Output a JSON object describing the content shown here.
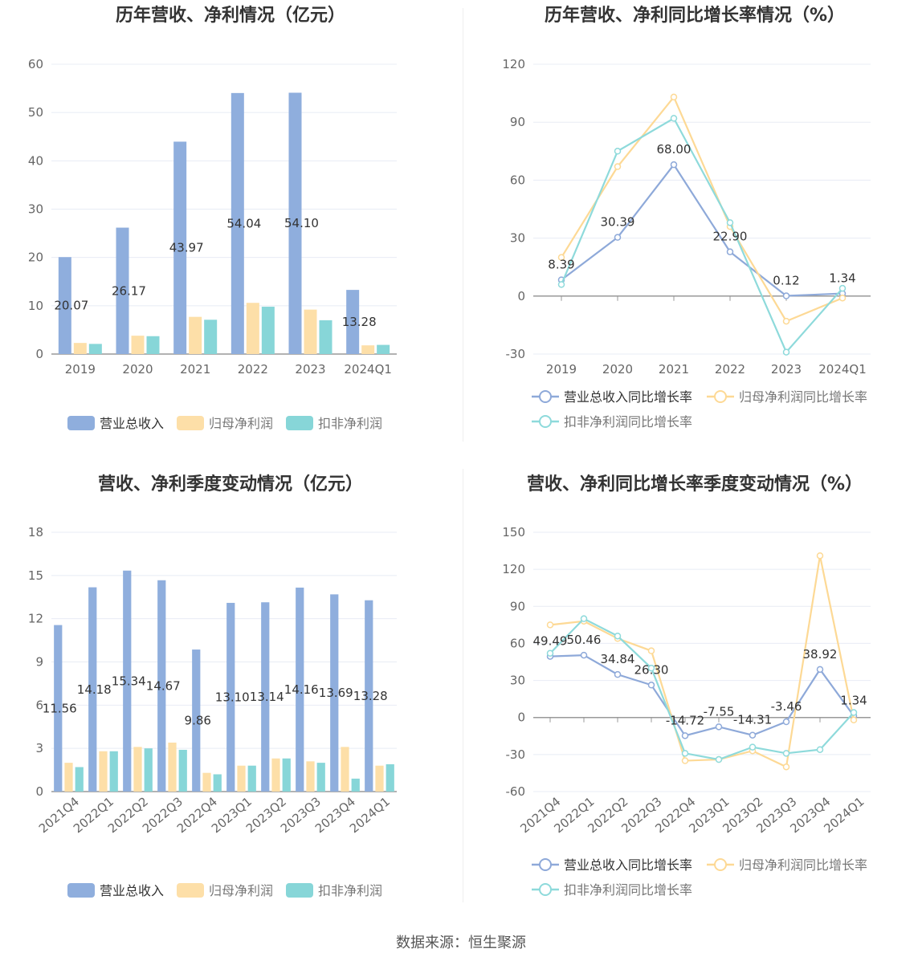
{
  "source": "数据来源：恒生聚源",
  "colors": {
    "revenue": "#8faedd",
    "net_profit": "#fddfa8",
    "deducted_profit": "#87d6d8",
    "revenue_line": "#8ea9d9",
    "net_profit_line": "#fdd995",
    "deducted_line": "#8edadb",
    "grid": "#e8ecf4",
    "axis": "#999999",
    "text": "#444444"
  },
  "chart_data": [
    {
      "type": "bar",
      "title": "历年营收、净利情况（亿元）",
      "categories": [
        "2019",
        "2020",
        "2021",
        "2022",
        "2023",
        "2024Q1"
      ],
      "ylim": [
        0,
        60
      ],
      "yticks": [
        0,
        10,
        20,
        30,
        40,
        50,
        60
      ],
      "series": [
        {
          "name": "营业总收入",
          "values": [
            20.07,
            26.17,
            43.97,
            54.04,
            54.1,
            13.28
          ],
          "labels": [
            "20.07",
            "26.17",
            "43.97",
            "54.04",
            "54.10",
            "13.28"
          ]
        },
        {
          "name": "归母净利润",
          "values": [
            2.3,
            3.8,
            7.7,
            10.6,
            9.2,
            1.8
          ]
        },
        {
          "name": "扣非净利润",
          "values": [
            2.1,
            3.7,
            7.1,
            9.8,
            7.0,
            1.9
          ]
        }
      ],
      "grid": true,
      "legend": "bottom"
    },
    {
      "type": "line",
      "title": "历年营收、净利同比增长率情况（%）",
      "categories": [
        "2019",
        "2020",
        "2021",
        "2022",
        "2023",
        "2024Q1"
      ],
      "ylim": [
        -30,
        120
      ],
      "yticks": [
        -30,
        0,
        30,
        60,
        90,
        120
      ],
      "series": [
        {
          "name": "营业总收入同比增长率",
          "values": [
            8.39,
            30.39,
            68.0,
            22.9,
            0.12,
            1.34
          ],
          "labels": [
            "8.39",
            "30.39",
            "68.00",
            "22.90",
            "0.12",
            "1.34"
          ]
        },
        {
          "name": "归母净利润同比增长率",
          "values": [
            20,
            67,
            103,
            36,
            -13,
            -1
          ]
        },
        {
          "name": "扣非净利润同比增长率",
          "values": [
            6,
            75,
            92,
            38,
            -29,
            4
          ]
        }
      ],
      "grid": true,
      "legend": "bottom"
    },
    {
      "type": "bar",
      "title": "营收、净利季度变动情况（亿元）",
      "categories": [
        "2021Q4",
        "2022Q1",
        "2022Q2",
        "2022Q3",
        "2022Q4",
        "2023Q1",
        "2023Q2",
        "2023Q3",
        "2023Q4",
        "2024Q1"
      ],
      "ylim": [
        0,
        18
      ],
      "yticks": [
        0,
        3,
        6,
        9,
        12,
        15,
        18
      ],
      "series": [
        {
          "name": "营业总收入",
          "values": [
            11.56,
            14.18,
            15.34,
            14.67,
            9.86,
            13.1,
            13.14,
            14.16,
            13.69,
            13.28
          ],
          "labels": [
            "11.56",
            "14.18",
            "15.34",
            "14.67",
            "9.86",
            "13.10",
            "13.14",
            "14.16",
            "13.69",
            "13.28"
          ]
        },
        {
          "name": "归母净利润",
          "values": [
            2.0,
            2.8,
            3.1,
            3.4,
            1.3,
            1.8,
            2.3,
            2.1,
            3.1,
            1.8
          ]
        },
        {
          "name": "扣非净利润",
          "values": [
            1.7,
            2.8,
            3.0,
            2.9,
            1.2,
            1.8,
            2.3,
            2.0,
            0.9,
            1.9
          ]
        }
      ],
      "grid": true,
      "legend": "bottom"
    },
    {
      "type": "line",
      "title": "营收、净利同比增长率季度变动情况（%）",
      "categories": [
        "2021Q4",
        "2022Q1",
        "2022Q2",
        "2022Q3",
        "2022Q4",
        "2023Q1",
        "2023Q2",
        "2023Q3",
        "2023Q4",
        "2024Q1"
      ],
      "ylim": [
        -60,
        150
      ],
      "yticks": [
        -60,
        -30,
        0,
        30,
        60,
        90,
        120,
        150
      ],
      "series": [
        {
          "name": "营业总收入同比增长率",
          "values": [
            49.49,
            50.46,
            34.84,
            26.3,
            -14.72,
            -7.55,
            -14.31,
            -3.46,
            38.92,
            1.34
          ],
          "labels": [
            "49.49",
            "50.46",
            "34.84",
            "26.30",
            "-14.72",
            "-7.55",
            "-14.31",
            "-3.46",
            "38.92",
            "1.34"
          ]
        },
        {
          "name": "归母净利润同比增长率",
          "values": [
            75,
            78,
            64,
            54,
            -35,
            -34,
            -27,
            -40,
            131,
            -2
          ]
        },
        {
          "name": "扣非净利润同比增长率",
          "values": [
            52,
            80,
            66,
            40,
            -29,
            -34,
            -24,
            -29,
            -26,
            4
          ]
        }
      ],
      "grid": true,
      "legend": "bottom"
    }
  ]
}
